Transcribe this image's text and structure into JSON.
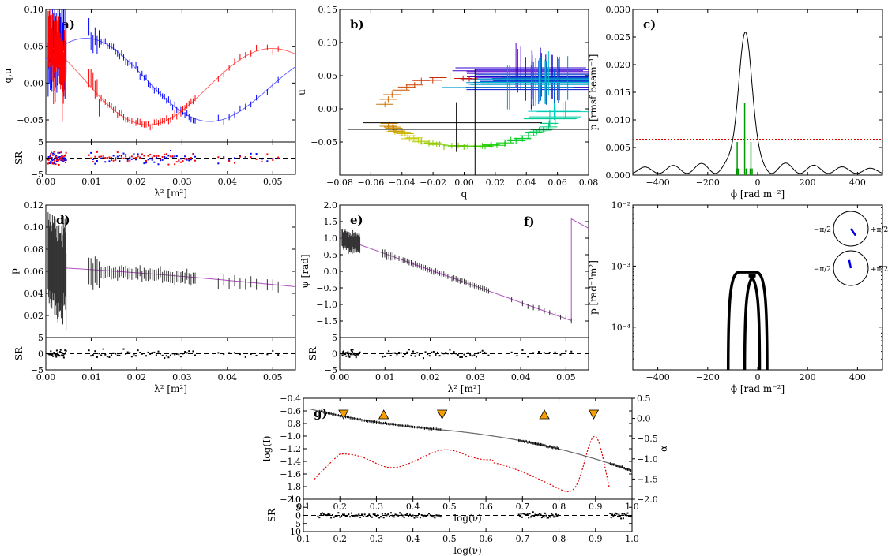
{
  "colors": {
    "q": "#0000ff",
    "u": "#ff0000",
    "model_q": "#6666ff",
    "model_u": "#ff6666",
    "data_p": "#333333",
    "model_pa": "#b04fc0",
    "rmsf_line": "#000000",
    "rmsf_comp": "#009900",
    "threshold": "#dd0000",
    "triangle": "#f5a000",
    "sed_model": "#666666",
    "alpha": "#dd0000"
  },
  "chart_data": [
    {
      "id": "a",
      "type": "line",
      "label": "a)",
      "title": "",
      "xlabel": "",
      "ylabel": "q,u",
      "xlim": [
        0,
        0.055
      ],
      "ylim": [
        -0.08,
        0.1
      ],
      "yticks": [
        "−0.05",
        "0.00",
        "0.05",
        "0.10"
      ],
      "yticks_v": [
        -0.05,
        0,
        0.05,
        0.1
      ],
      "xticks_v": [
        0,
        0.01,
        0.02,
        0.03,
        0.04,
        0.05
      ],
      "series": [
        {
          "name": "q",
          "note": "blue data with model"
        },
        {
          "name": "u",
          "note": "red data with model"
        }
      ]
    },
    {
      "id": "a_res",
      "type": "scatter",
      "label": "",
      "xlabel": "λ² [m²]",
      "ylabel": "SR",
      "xlim": [
        0,
        0.055
      ],
      "ylim": [
        -5,
        5
      ],
      "xticks": [
        "0.00",
        "0.01",
        "0.02",
        "0.03",
        "0.04",
        "0.05"
      ],
      "xticks_v": [
        0,
        0.01,
        0.02,
        0.03,
        0.04,
        0.05
      ],
      "yticks": [
        "−5",
        "0",
        "5"
      ],
      "yticks_v": [
        -5,
        0,
        5
      ]
    },
    {
      "id": "b",
      "type": "scatter",
      "label": "b)",
      "xlabel": "q",
      "ylabel": "u",
      "xlim": [
        -0.08,
        0.08
      ],
      "ylim": [
        -0.1,
        0.15
      ],
      "xticks": [
        "−0.08",
        "−0.06",
        "−0.04",
        "−0.02",
        "0.00",
        "0.02",
        "0.04",
        "0.06",
        "0.08"
      ],
      "xticks_v": [
        -0.08,
        -0.06,
        -0.04,
        -0.02,
        0,
        0.02,
        0.04,
        0.06,
        0.08
      ],
      "yticks": [
        "−0.05",
        "0.00",
        "0.05",
        "0.10",
        "0.15"
      ],
      "yticks_v": [
        -0.05,
        0,
        0.05,
        0.1,
        0.15
      ]
    },
    {
      "id": "c",
      "type": "line",
      "label": "c)",
      "xlabel": "ϕ [rad m⁻²]",
      "ylabel": "p [rmsf beam⁻¹]",
      "xlim": [
        -500,
        500
      ],
      "ylim": [
        0,
        0.03
      ],
      "xticks": [
        "−400",
        "−200",
        "0",
        "200",
        "400"
      ],
      "xticks_v": [
        -400,
        -200,
        0,
        200,
        400
      ],
      "yticks": [
        "0.000",
        "0.005",
        "0.010",
        "0.015",
        "0.020",
        "0.025",
        "0.030"
      ],
      "yticks_v": [
        0,
        0.005,
        0.01,
        0.015,
        0.02,
        0.025,
        0.03
      ],
      "threshold": 0.0065,
      "peak_phi": -50,
      "peak_value": 0.0255,
      "components": [
        {
          "phi": -82,
          "value": 0.006
        },
        {
          "phi": -52,
          "value": 0.013
        },
        {
          "phi": -27,
          "value": 0.006
        }
      ]
    },
    {
      "id": "d",
      "type": "line",
      "label": "d)",
      "xlabel": "",
      "ylabel": "p",
      "xlim": [
        0,
        0.055
      ],
      "ylim": [
        0,
        0.12
      ],
      "yticks": [
        "0.02",
        "0.04",
        "0.06",
        "0.08",
        "0.10",
        "0.12"
      ],
      "yticks_v": [
        0.02,
        0.04,
        0.06,
        0.08,
        0.1,
        0.12
      ]
    },
    {
      "id": "d_res",
      "type": "scatter",
      "label": "",
      "xlabel": "λ² [m²]",
      "ylabel": "SR",
      "xlim": [
        0,
        0.055
      ],
      "ylim": [
        -5,
        5
      ],
      "xticks": [
        "0.00",
        "0.01",
        "0.02",
        "0.03",
        "0.04",
        "0.05"
      ],
      "xticks_v": [
        0,
        0.01,
        0.02,
        0.03,
        0.04,
        0.05
      ],
      "yticks": [
        "−5",
        "0",
        "5"
      ],
      "yticks_v": [
        -5,
        0,
        5
      ]
    },
    {
      "id": "e",
      "type": "line",
      "label": "e)",
      "label2": "f)",
      "xlabel": "",
      "ylabel": "ψ [rad]",
      "xlim": [
        0,
        0.055
      ],
      "ylim": [
        -2.0,
        2.0
      ],
      "yticks": [
        "−1.5",
        "−1.0",
        "−0.5",
        "0.0",
        "0.5",
        "1.0",
        "1.5",
        "2.0"
      ],
      "yticks_v": [
        -1.5,
        -1.0,
        -0.5,
        0,
        0.5,
        1.0,
        1.5,
        2.0
      ]
    },
    {
      "id": "e_res",
      "type": "scatter",
      "label": "",
      "xlabel": "λ² [m²]",
      "ylabel": "SR",
      "xlim": [
        0,
        0.055
      ],
      "ylim": [
        -5,
        5
      ],
      "xticks": [
        "0.00",
        "0.01",
        "0.02",
        "0.03",
        "0.04",
        "0.05"
      ],
      "xticks_v": [
        0,
        0.01,
        0.02,
        0.03,
        0.04,
        0.05
      ],
      "yticks": [
        "−5",
        "0",
        "5"
      ],
      "yticks_v": [
        -5,
        0,
        5
      ]
    },
    {
      "id": "f",
      "type": "line",
      "label": "",
      "xlabel": "ϕ [rad m⁻²]",
      "ylabel": "p [rad⁻¹m²]",
      "xlim": [
        -500,
        500
      ],
      "ylim_log": [
        -4.7,
        -2
      ],
      "xticks": [
        "−400",
        "−200",
        "0",
        "200",
        "400"
      ],
      "xticks_v": [
        -400,
        -200,
        0,
        200,
        400
      ],
      "yticks": [
        "10⁻²",
        "10⁻³",
        "10⁻⁴"
      ],
      "yticks_v": [
        -2,
        -3,
        -4
      ],
      "boxes": [
        {
          "from": -118,
          "to": 38,
          "height": -3.1
        },
        {
          "from": -52,
          "to": 8,
          "height": -3.16
        }
      ],
      "dials": [
        {
          "label_left": "−π/2",
          "label_right": "+π/2",
          "angle_deg": -35
        },
        {
          "label_left": "−π/2",
          "label_right": "+π/2",
          "angle_deg": 12
        }
      ]
    },
    {
      "id": "g",
      "type": "line",
      "label": "g)",
      "xlabel": "log(ν)",
      "ylabel": "log(I)",
      "ylabel2": "α",
      "xlim": [
        0.1,
        1.0
      ],
      "ylim": [
        -2.0,
        -0.4
      ],
      "ylim2": [
        -2.0,
        0.5
      ],
      "xticks": [
        "0.1",
        "0.2",
        "0.3",
        "0.4",
        "0.5",
        "0.6",
        "0.7",
        "0.8",
        "0.9",
        "1.0"
      ],
      "xticks_v": [
        0.1,
        0.2,
        0.3,
        0.4,
        0.5,
        0.6,
        0.7,
        0.8,
        0.9,
        1.0
      ],
      "yticks": [
        "−0.4",
        "−0.6",
        "−0.8",
        "−1.0",
        "−1.2",
        "−1.4",
        "−1.6",
        "−1.8",
        "−2.0"
      ],
      "yticks_v": [
        -0.4,
        -0.6,
        -0.8,
        -1.0,
        -1.2,
        -1.4,
        -1.6,
        -1.8,
        -2.0
      ],
      "yticks2": [
        "0.5",
        "0.0",
        "−0.5",
        "−1.0",
        "−1.5",
        "−2.0"
      ],
      "yticks2_v": [
        0.5,
        0,
        -0.5,
        -1.0,
        -1.5,
        -2.0
      ],
      "markers": [
        {
          "x": 0.21,
          "dir": "down"
        },
        {
          "x": 0.32,
          "dir": "up"
        },
        {
          "x": 0.48,
          "dir": "down"
        },
        {
          "x": 0.76,
          "dir": "up"
        },
        {
          "x": 0.895,
          "dir": "down"
        }
      ]
    },
    {
      "id": "g_res",
      "type": "scatter",
      "label": "",
      "xlabel": "log(ν)",
      "ylabel": "SR",
      "xlim": [
        0.1,
        1.0
      ],
      "ylim": [
        -10,
        10
      ],
      "xticks": [
        "0.1",
        "0.2",
        "0.3",
        "0.4",
        "0.5",
        "0.6",
        "0.7",
        "0.8",
        "0.9",
        "1.0"
      ],
      "xticks_v": [
        0.1,
        0.2,
        0.3,
        0.4,
        0.5,
        0.6,
        0.7,
        0.8,
        0.9,
        1.0
      ],
      "yticks": [
        "−10",
        "−5",
        "0",
        "5",
        "10"
      ],
      "yticks_v": [
        -10,
        -5,
        0,
        5,
        10
      ]
    }
  ]
}
